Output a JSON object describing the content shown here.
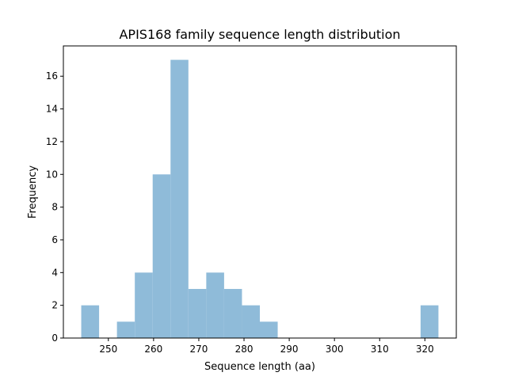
{
  "chart_data": {
    "type": "bar",
    "subtype": "histogram",
    "title": "APIS168 family sequence length distribution",
    "xlabel": "Sequence length (aa)",
    "ylabel": "Frequency",
    "bin_edges": [
      244,
      247.95,
      251.9,
      255.85,
      259.8,
      263.75,
      267.7,
      271.65,
      275.6,
      279.55,
      283.5,
      287.45,
      291.4,
      295.35,
      299.3,
      303.25,
      307.2,
      311.15,
      315.1,
      319.05,
      323
    ],
    "values": [
      2,
      0,
      1,
      4,
      10,
      17,
      3,
      4,
      3,
      2,
      1,
      0,
      0,
      0,
      0,
      0,
      0,
      0,
      0,
      2
    ],
    "xlim": [
      240.05,
      326.95
    ],
    "ylim": [
      0,
      17.85
    ],
    "xticks": [
      250,
      260,
      270,
      280,
      290,
      300,
      310,
      320
    ],
    "yticks": [
      0,
      2,
      4,
      6,
      8,
      10,
      12,
      14,
      16
    ],
    "grid": false,
    "bar_color": "#8fbbd9"
  }
}
